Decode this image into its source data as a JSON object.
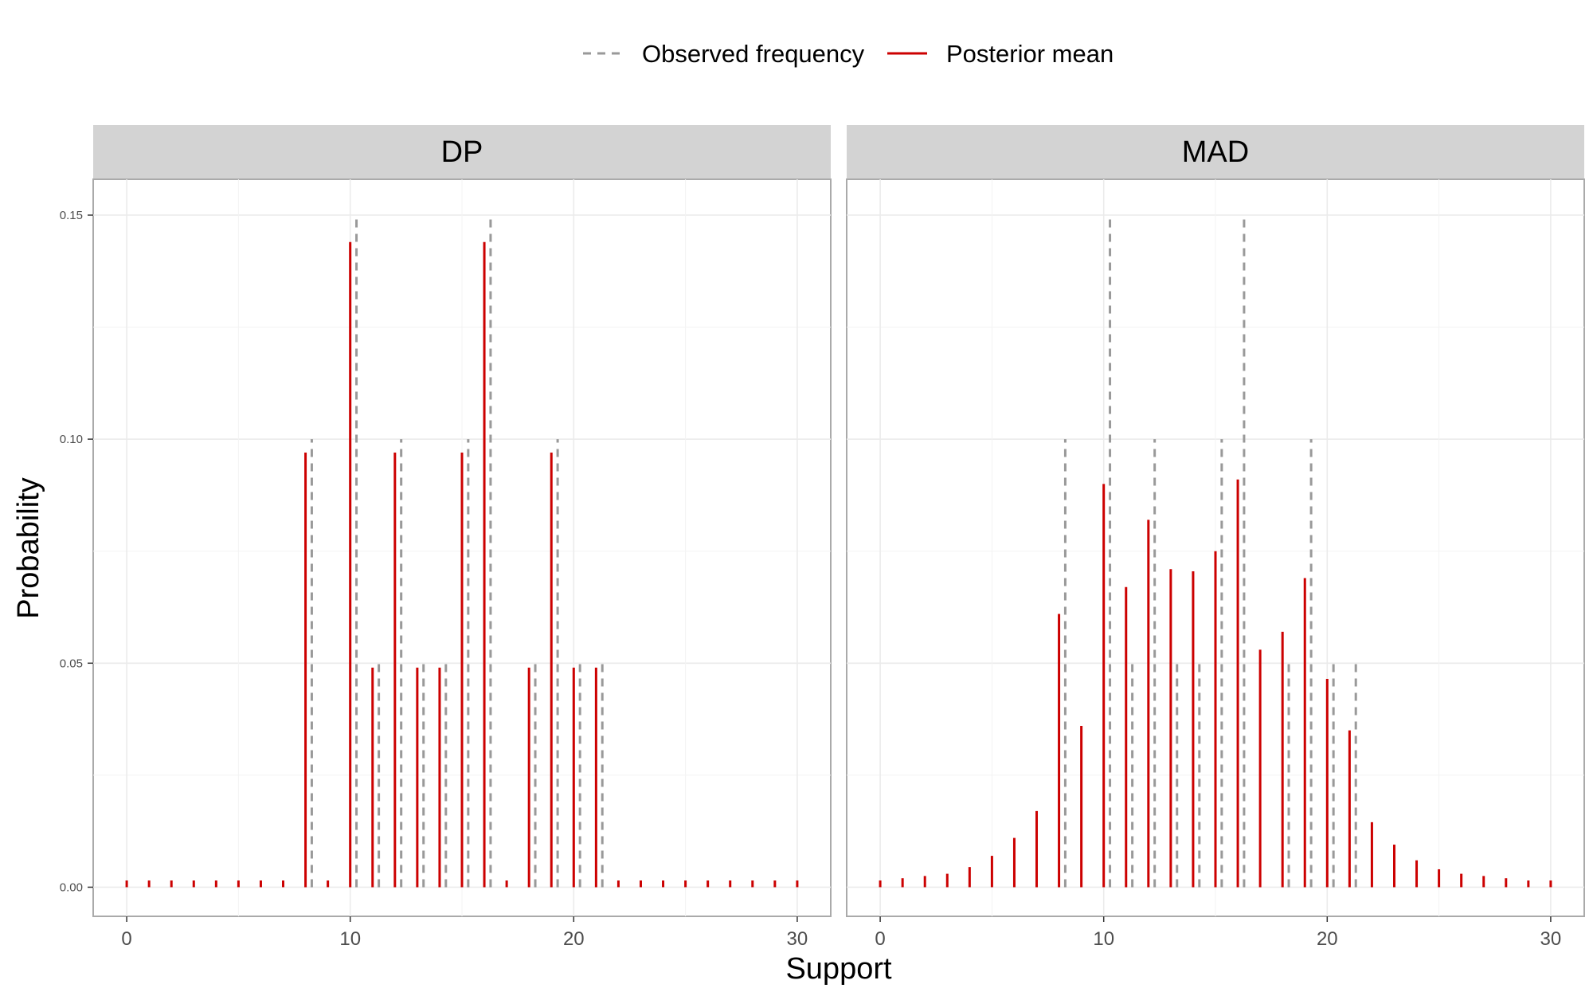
{
  "chart_data": {
    "type": "bar",
    "xlabel": "Support",
    "ylabel": "Probability",
    "xlim": [
      -1.5,
      31.5
    ],
    "ylim": [
      -0.0065,
      0.158
    ],
    "x_ticks": [
      0,
      10,
      20,
      30
    ],
    "x_tick_labels": [
      "0",
      "10",
      "20",
      "30"
    ],
    "y_ticks": [
      0.0,
      0.05,
      0.1,
      0.15
    ],
    "y_tick_labels": [
      "0.00",
      "0.05",
      "0.10",
      "0.15"
    ],
    "grid": true,
    "legend": {
      "position": "top",
      "entries": [
        {
          "label": "Observed frequency",
          "style": "dashed",
          "color": "#999999"
        },
        {
          "label": "Posterior mean",
          "style": "solid",
          "color": "#cc0000"
        }
      ]
    },
    "panels": [
      {
        "title": "DP",
        "series": [
          {
            "name": "Posterior mean",
            "x": [
              0,
              1,
              2,
              3,
              4,
              5,
              6,
              7,
              8,
              9,
              10,
              11,
              12,
              13,
              14,
              15,
              16,
              17,
              18,
              19,
              20,
              21,
              22,
              23,
              24,
              25,
              26,
              27,
              28,
              29,
              30
            ],
            "values": [
              0.0015,
              0.0015,
              0.0015,
              0.0015,
              0.0015,
              0.0015,
              0.0015,
              0.0015,
              0.097,
              0.0015,
              0.144,
              0.049,
              0.097,
              0.049,
              0.049,
              0.097,
              0.144,
              0.0015,
              0.049,
              0.097,
              0.049,
              0.049,
              0.0015,
              0.0015,
              0.0015,
              0.0015,
              0.0015,
              0.0015,
              0.0015,
              0.0015,
              0.0015
            ]
          },
          {
            "name": "Observed frequency",
            "x": [
              8,
              10,
              11,
              12,
              13,
              14,
              15,
              16,
              18,
              19,
              20,
              21
            ],
            "values": [
              0.1,
              0.15,
              0.05,
              0.1,
              0.05,
              0.05,
              0.1,
              0.15,
              0.05,
              0.1,
              0.05,
              0.05
            ]
          }
        ]
      },
      {
        "title": "MAD",
        "series": [
          {
            "name": "Posterior mean",
            "x": [
              0,
              1,
              2,
              3,
              4,
              5,
              6,
              7,
              8,
              9,
              10,
              11,
              12,
              13,
              14,
              15,
              16,
              17,
              18,
              19,
              20,
              21,
              22,
              23,
              24,
              25,
              26,
              27,
              28,
              29,
              30
            ],
            "values": [
              0.0015,
              0.002,
              0.0025,
              0.003,
              0.0045,
              0.007,
              0.011,
              0.017,
              0.061,
              0.036,
              0.09,
              0.067,
              0.082,
              0.071,
              0.0705,
              0.075,
              0.091,
              0.053,
              0.057,
              0.069,
              0.0465,
              0.035,
              0.0145,
              0.0095,
              0.006,
              0.004,
              0.003,
              0.0025,
              0.002,
              0.0015,
              0.0015
            ]
          },
          {
            "name": "Observed frequency",
            "x": [
              8,
              10,
              11,
              12,
              13,
              14,
              15,
              16,
              18,
              19,
              20,
              21
            ],
            "values": [
              0.1,
              0.15,
              0.05,
              0.1,
              0.05,
              0.05,
              0.1,
              0.15,
              0.05,
              0.1,
              0.05,
              0.05
            ]
          }
        ]
      }
    ]
  }
}
